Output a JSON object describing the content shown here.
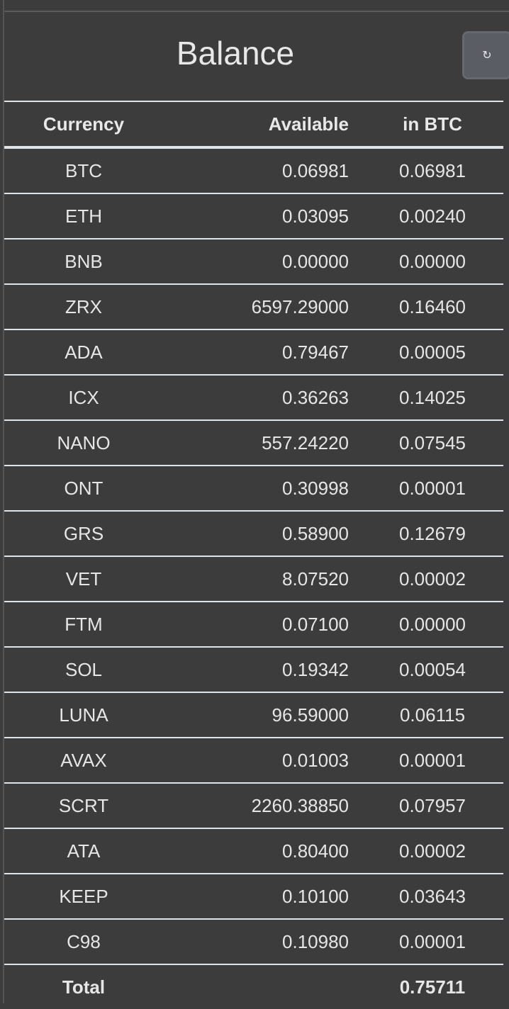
{
  "title": "Balance",
  "refresh_icon": "↻",
  "columns": [
    "Currency",
    "Available",
    "in BTC"
  ],
  "rows": [
    [
      "BTC",
      "0.06981",
      "0.06981"
    ],
    [
      "ETH",
      "0.03095",
      "0.00240"
    ],
    [
      "BNB",
      "0.00000",
      "0.00000"
    ],
    [
      "ZRX",
      "6597.29000",
      "0.16460"
    ],
    [
      "ADA",
      "0.79467",
      "0.00005"
    ],
    [
      "ICX",
      "0.36263",
      "0.14025"
    ],
    [
      "NANO",
      "557.24220",
      "0.07545"
    ],
    [
      "ONT",
      "0.30998",
      "0.00001"
    ],
    [
      "GRS",
      "0.58900",
      "0.12679"
    ],
    [
      "VET",
      "8.07520",
      "0.00002"
    ],
    [
      "FTM",
      "0.07100",
      "0.00000"
    ],
    [
      "SOL",
      "0.19342",
      "0.00054"
    ],
    [
      "LUNA",
      "96.59000",
      "0.06115"
    ],
    [
      "AVAX",
      "0.01003",
      "0.00001"
    ],
    [
      "SCRT",
      "2260.38850",
      "0.07957"
    ],
    [
      "ATA",
      "0.80400",
      "0.00002"
    ],
    [
      "KEEP",
      "0.10100",
      "0.03643"
    ],
    [
      "C98",
      "0.10980",
      "0.00001"
    ]
  ],
  "total": {
    "label": "Total",
    "value": "0.75711"
  }
}
